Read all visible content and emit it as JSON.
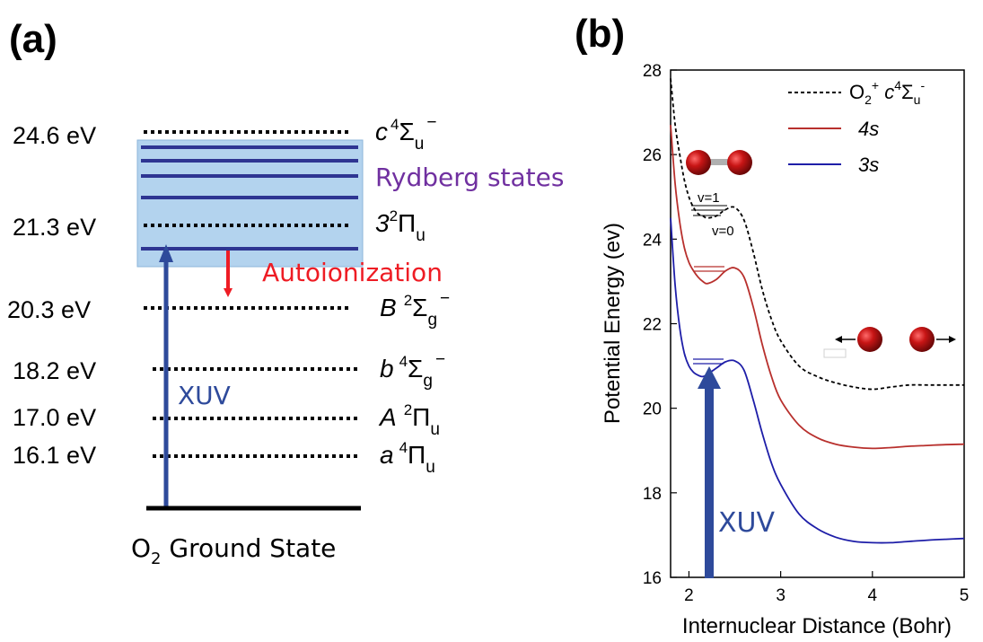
{
  "panel_a": {
    "label": "(a)",
    "levels": [
      {
        "energy": "24.6 eV",
        "state_letter": "c",
        "state_mult": "4",
        "state_sym": "Σ",
        "state_sub": "u",
        "state_sup": "−"
      },
      {
        "energy": "21.3 eV",
        "state_letter": "3",
        "state_mult": "2",
        "state_sym": "Π",
        "state_sub": "u",
        "state_sup": ""
      },
      {
        "energy": "20.3 eV",
        "state_letter": "B",
        "state_mult": "2",
        "state_sym": "Σ",
        "state_sub": "g",
        "state_sup": "−"
      },
      {
        "energy": "18.2 eV",
        "state_letter": "b",
        "state_mult": "4",
        "state_sym": "Σ",
        "state_sub": "g",
        "state_sup": "−"
      },
      {
        "energy": "17.0 eV",
        "state_letter": "A",
        "state_mult": "2",
        "state_sym": "Π",
        "state_sub": "u",
        "state_sup": ""
      },
      {
        "energy": "16.1 eV",
        "state_letter": "a",
        "state_mult": "4",
        "state_sym": "Π",
        "state_sub": "u",
        "state_sup": ""
      }
    ],
    "rydberg_label": "Rydberg states",
    "autoionization_label": "Autoionization",
    "xuv_label": "XUV",
    "ground_state": {
      "prefix": "O",
      "sub": "2",
      "suffix": " Ground State"
    }
  },
  "panel_b": {
    "label": "(b)",
    "xuv_label": "XUV",
    "vib_labels": [
      "v=1",
      "v=0"
    ]
  },
  "colors": {
    "rydberg_fill": "#b3d3ee",
    "rydberg_line": "#2e3592",
    "rydberg_text": "#7030a0",
    "autoionization": "#ee1c24",
    "xuv": "#2e4a9b",
    "curve_c": "#000000",
    "curve_4s": "#b8302d",
    "curve_3s": "#1e1ea8",
    "atom": "#b11212"
  },
  "chart_data": {
    "type": "line",
    "xlabel": "Internuclear Distance (Bohr)",
    "ylabel": "Potential Energy (ev)",
    "xlim": [
      1.8,
      5.0
    ],
    "ylim": [
      16,
      28
    ],
    "xticks": [
      2,
      3,
      4,
      5
    ],
    "yticks": [
      16,
      18,
      20,
      22,
      24,
      26,
      28
    ],
    "legend_position": "top-right",
    "series": [
      {
        "name": "O2+ c4Σu-",
        "legend": {
          "prefix": "O",
          "sub1": "2",
          "sup1": "+",
          "letter": " c",
          "sup2": "4",
          "sym": "Σ",
          "sub2": "u",
          "sup3": "-"
        },
        "style": "dashed",
        "x": [
          1.8,
          1.85,
          1.9,
          1.95,
          2.0,
          2.05,
          2.1,
          2.15,
          2.2,
          2.3,
          2.4,
          2.5,
          2.6,
          2.7,
          2.8,
          2.9,
          3.0,
          3.2,
          3.4,
          3.6,
          3.8,
          4.0,
          4.2,
          4.4,
          4.6,
          4.8,
          5.0
        ],
        "y": [
          27.8,
          26.7,
          26.0,
          25.4,
          25.0,
          24.75,
          24.6,
          24.55,
          24.5,
          24.55,
          24.7,
          24.75,
          24.45,
          23.7,
          22.8,
          22.1,
          21.6,
          21.0,
          20.75,
          20.6,
          20.5,
          20.45,
          20.5,
          20.55,
          20.55,
          20.55,
          20.55
        ]
      },
      {
        "name": "4s",
        "style": "solid",
        "x": [
          1.8,
          1.85,
          1.9,
          1.95,
          2.0,
          2.05,
          2.1,
          2.15,
          2.2,
          2.3,
          2.4,
          2.5,
          2.6,
          2.7,
          2.8,
          2.9,
          3.0,
          3.2,
          3.4,
          3.6,
          3.8,
          4.0,
          4.2,
          4.4,
          4.6,
          4.8,
          5.0
        ],
        "y": [
          26.7,
          25.3,
          24.4,
          23.8,
          23.45,
          23.25,
          23.1,
          23.0,
          22.95,
          23.05,
          23.25,
          23.32,
          23.1,
          22.4,
          21.5,
          20.75,
          20.2,
          19.6,
          19.3,
          19.15,
          19.08,
          19.05,
          19.07,
          19.1,
          19.12,
          19.14,
          19.15
        ]
      },
      {
        "name": "3s",
        "style": "solid",
        "x": [
          1.8,
          1.85,
          1.9,
          1.95,
          2.0,
          2.05,
          2.1,
          2.15,
          2.2,
          2.3,
          2.4,
          2.5,
          2.6,
          2.7,
          2.8,
          2.9,
          3.0,
          3.2,
          3.4,
          3.6,
          3.8,
          4.0,
          4.2,
          4.4,
          4.6,
          4.8,
          5.0
        ],
        "y": [
          24.5,
          22.9,
          21.9,
          21.3,
          21.0,
          20.85,
          20.78,
          20.75,
          20.8,
          20.95,
          21.1,
          21.12,
          20.9,
          20.2,
          19.4,
          18.7,
          18.2,
          17.5,
          17.15,
          16.95,
          16.85,
          16.82,
          16.82,
          16.85,
          16.88,
          16.9,
          16.92
        ]
      }
    ]
  }
}
